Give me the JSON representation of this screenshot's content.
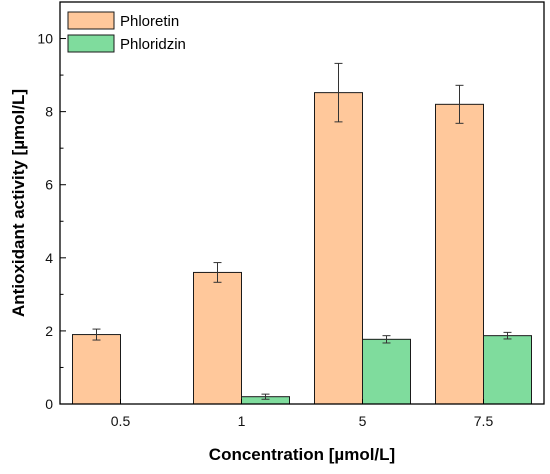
{
  "chart_data": {
    "type": "bar",
    "categories": [
      "0.5",
      "1",
      "5",
      "7.5"
    ],
    "series": [
      {
        "name": "Phloretin",
        "values": [
          1.9,
          3.6,
          8.52,
          8.2
        ],
        "errors": [
          0.15,
          0.27,
          0.8,
          0.52
        ],
        "color": "#FFC89B"
      },
      {
        "name": "Phloridzin",
        "values": [
          null,
          0.2,
          1.77,
          1.87
        ],
        "errors": [
          null,
          0.07,
          0.1,
          0.09
        ],
        "color": "#7FDC9D"
      }
    ],
    "xlabel": "Concentration [µmol/L]",
    "ylabel": "Antioxidant activity [µmol/L]",
    "ylim": [
      0,
      11
    ],
    "yticks": [
      0,
      2,
      4,
      6,
      8,
      10
    ],
    "grid": false,
    "legend_position": "top-left"
  }
}
